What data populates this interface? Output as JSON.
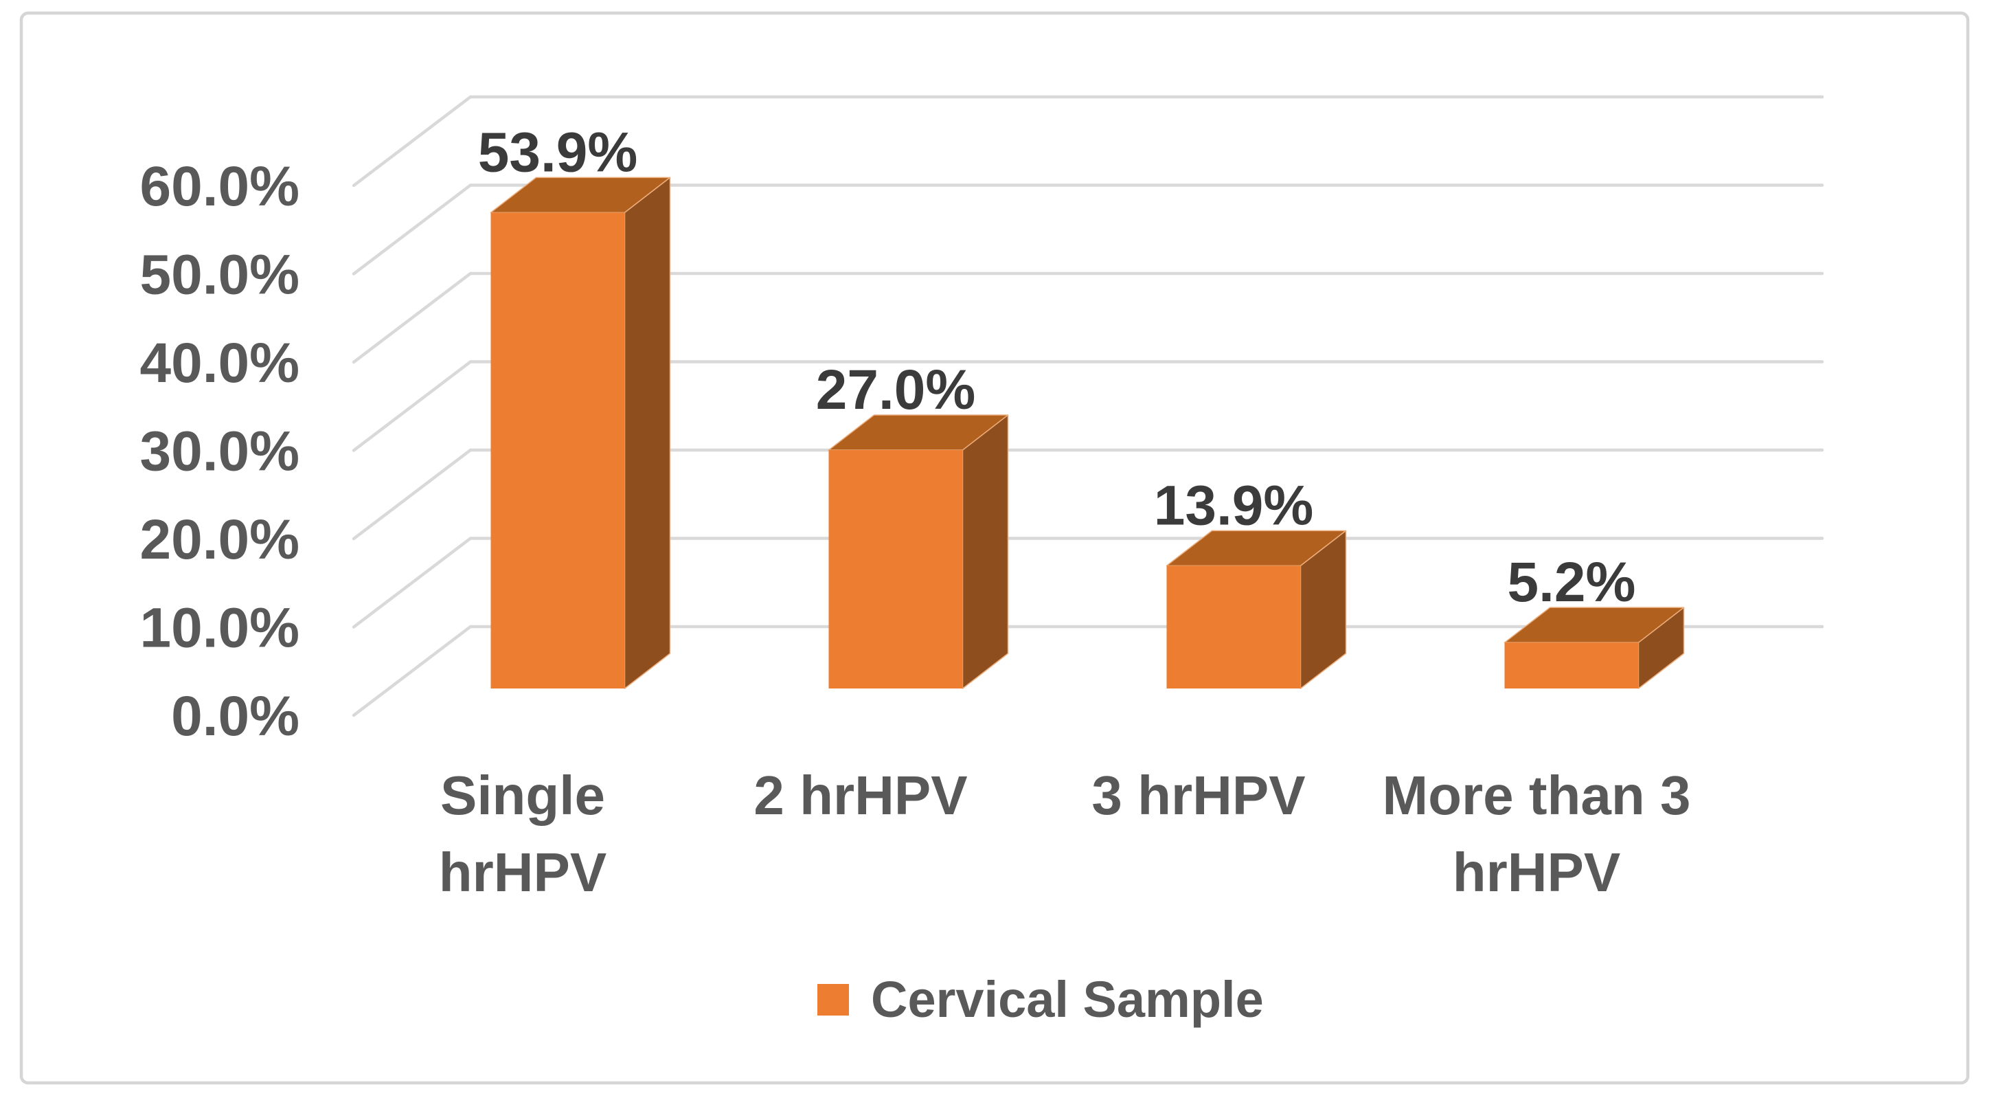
{
  "chart_data": {
    "type": "bar",
    "variant": "3d-column",
    "title": "",
    "categories": [
      "Single hrHPV",
      "2 hrHPV",
      "3 hrHPV",
      "More than 3 hrHPV"
    ],
    "category_lines": [
      [
        "Single",
        "hrHPV"
      ],
      [
        "2 hrHPV"
      ],
      [
        "3 hrHPV"
      ],
      [
        "More than 3",
        "hrHPV"
      ]
    ],
    "series": [
      {
        "name": "Cervical Sample",
        "values": [
          53.9,
          27.0,
          13.9,
          5.2
        ]
      }
    ],
    "data_labels": [
      "53.9%",
      "27.0%",
      "13.9%",
      "5.2%"
    ],
    "y_axis": {
      "min": 0,
      "max": 60,
      "step": 10,
      "tick_labels": [
        "0.0%",
        "10.0%",
        "20.0%",
        "30.0%",
        "40.0%",
        "50.0%",
        "60.0%"
      ]
    },
    "grid": true,
    "legend": {
      "position": "bottom-center",
      "entries": [
        {
          "label": "Cervical Sample",
          "swatch_color": "#ED7D31"
        }
      ]
    },
    "colors": {
      "bar_front": "#ED7D31",
      "bar_top": "#B2601E",
      "bar_side": "#8E4E1D",
      "gridline": "#D9D9D9",
      "axis_text": "#595959",
      "data_label_text": "#3B3B3B",
      "frame_border": "#D5D5D5",
      "background": "#FFFFFF"
    }
  }
}
